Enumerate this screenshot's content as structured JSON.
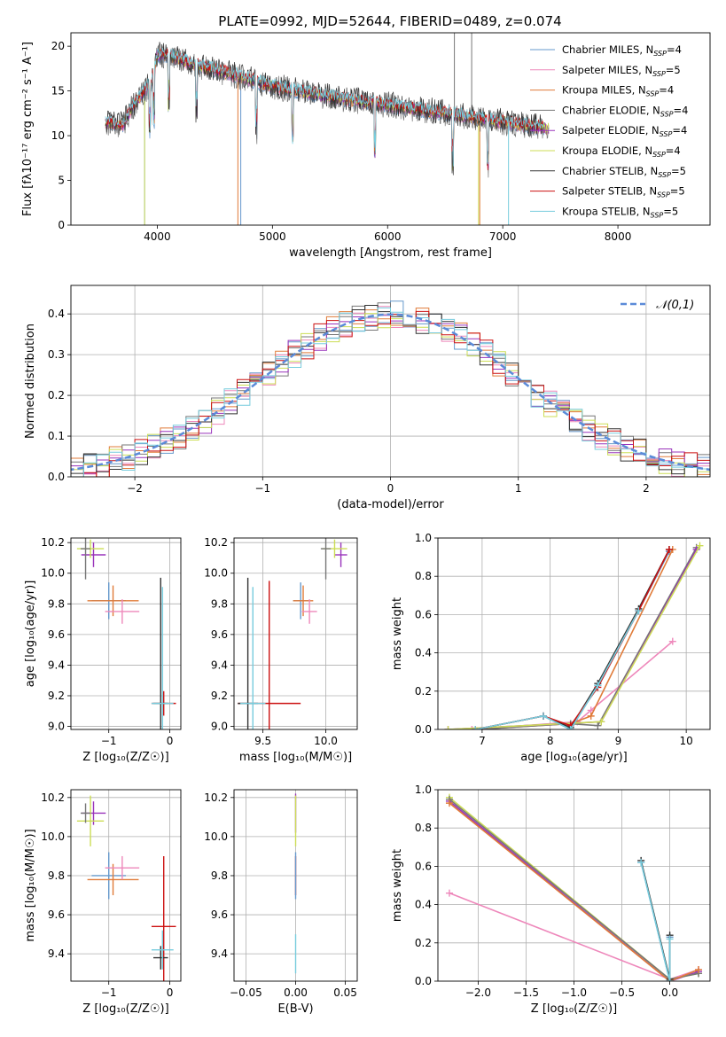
{
  "colors": [
    "#6699cc",
    "#ee88bb",
    "#e07b39",
    "#777777",
    "#9933bb",
    "#ccdd55",
    "#333333",
    "#cc1111",
    "#77ccdd"
  ],
  "title": "PLATE=0992, MJD=52644, FIBERID=0489, z=0.074",
  "chart_data": [
    {
      "id": "spectrum",
      "type": "line",
      "xlabel": "wavelength [Angstrom, rest frame]",
      "ylabel": "Flux [fλ10⁻¹⁷ erg cm⁻² s⁻¹ A⁻¹]",
      "xlim": [
        3250,
        8800
      ],
      "ylim": [
        0,
        21.5
      ],
      "xticks": [
        4000,
        5000,
        6000,
        7000,
        8000
      ],
      "yticks": [
        0,
        5,
        10,
        15,
        20
      ],
      "grid": false,
      "legend_position": "top-right",
      "series": [
        {
          "name": "Chabrier MILES, N_SSP=4",
          "color_index": 0
        },
        {
          "name": "Salpeter MILES, N_SSP=5",
          "color_index": 1
        },
        {
          "name": "Kroupa MILES, N_SSP=4",
          "color_index": 2
        },
        {
          "name": "Chabrier ELODIE, N_SSP=4",
          "color_index": 3
        },
        {
          "name": "Salpeter ELODIE, N_SSP=4",
          "color_index": 4
        },
        {
          "name": "Kroupa ELODIE, N_SSP=4",
          "color_index": 5
        },
        {
          "name": "Chabrier STELIB, N_SSP=5",
          "color_index": 6
        },
        {
          "name": "Salpeter STELIB, N_SSP=5",
          "color_index": 7
        },
        {
          "name": "Kroupa STELIB, N_SSP=5",
          "color_index": 8
        }
      ],
      "continuum": {
        "x": [
          3550,
          3700,
          3800,
          3950,
          4000,
          4100,
          4300,
          4600,
          5000,
          5500,
          6000,
          6500,
          7000,
          7400
        ],
        "y": [
          11.5,
          11.2,
          13.5,
          16.0,
          19.0,
          19.0,
          18.0,
          17.0,
          15.5,
          14.3,
          13.4,
          12.5,
          11.5,
          10.8
        ]
      }
    },
    {
      "id": "residual_hist",
      "type": "line",
      "xlabel": "(data-model)/error",
      "ylabel": "Normed distribution",
      "xlim": [
        -2.5,
        2.5
      ],
      "ylim": [
        0,
        0.47
      ],
      "xticks": [
        -2,
        -1,
        0,
        1,
        2
      ],
      "yticks": [
        0.0,
        0.1,
        0.2,
        0.3,
        0.4
      ],
      "grid": true,
      "legend_position": "top-right",
      "legend": "𝒩(0,1)",
      "gaussian": {
        "mean": 0,
        "sigma": 1
      },
      "bin_width": 0.1,
      "bin_start": -2.6
    },
    {
      "id": "age_vs_Z",
      "type": "scatter",
      "xlabel": "Z [log₁₀(Z/Z☉)]",
      "ylabel": "age  [log₁₀(age/yr)]",
      "xlim": [
        -1.62,
        0.18
      ],
      "ylim": [
        8.98,
        10.23
      ],
      "xticks": [
        -1,
        0
      ],
      "yticks": [
        9.0,
        9.2,
        9.4,
        9.6,
        9.8,
        10.0,
        10.2
      ],
      "grid": true,
      "errorbars": [
        {
          "c": 0,
          "x": -1.0,
          "y": 9.82,
          "xe": 0.28,
          "ye": 0.12
        },
        {
          "c": 2,
          "x": -0.93,
          "y": 9.82,
          "xe": 0.42,
          "ye": 0.1
        },
        {
          "c": 1,
          "x": -0.78,
          "y": 9.75,
          "xe": 0.28,
          "ye": 0.08
        },
        {
          "c": 4,
          "x": -1.25,
          "y": 10.12,
          "xe": 0.2,
          "ye": 0.08
        },
        {
          "c": 5,
          "x": -1.3,
          "y": 10.16,
          "xe": 0.22,
          "ye": 0.06
        },
        {
          "c": 3,
          "x": -1.38,
          "y": 10.16,
          "xe": 0.08,
          "ye": 0.2
        },
        {
          "c": 7,
          "x": -0.1,
          "y": 9.15,
          "xe": 0.2,
          "ye": 0.08
        },
        {
          "c": 6,
          "x": -0.15,
          "y": 9.15,
          "xe": 0.12,
          "ye": 0.82
        },
        {
          "c": 8,
          "x": -0.12,
          "y": 9.15,
          "xe": 0.18,
          "ye": 0.76
        }
      ]
    },
    {
      "id": "age_vs_mass",
      "type": "scatter",
      "xlabel": "mass [log₁₀(M/M☉)]",
      "ylabel": "",
      "xlim": [
        9.27,
        10.25
      ],
      "ylim": [
        8.98,
        10.23
      ],
      "xticks": [
        9.5,
        10.0
      ],
      "yticks": [
        9.0,
        9.2,
        9.4,
        9.6,
        9.8,
        10.0,
        10.2
      ],
      "grid": true,
      "errorbars": [
        {
          "c": 0,
          "x": 9.8,
          "y": 9.82,
          "xe": 0.06,
          "ye": 0.12
        },
        {
          "c": 2,
          "x": 9.82,
          "y": 9.82,
          "xe": 0.08,
          "ye": 0.1
        },
        {
          "c": 1,
          "x": 9.87,
          "y": 9.75,
          "xe": 0.06,
          "ye": 0.08
        },
        {
          "c": 4,
          "x": 10.12,
          "y": 10.12,
          "xe": 0.05,
          "ye": 0.08
        },
        {
          "c": 5,
          "x": 10.07,
          "y": 10.16,
          "xe": 0.1,
          "ye": 0.06
        },
        {
          "c": 3,
          "x": 10.0,
          "y": 10.16,
          "xe": 0.04,
          "ye": 0.2
        },
        {
          "c": 7,
          "x": 9.55,
          "y": 9.15,
          "xe": 0.25,
          "ye": 0.8
        },
        {
          "c": 6,
          "x": 9.38,
          "y": 9.15,
          "xe": 0.08,
          "ye": 0.82
        },
        {
          "c": 8,
          "x": 9.42,
          "y": 9.15,
          "xe": 0.1,
          "ye": 0.76
        }
      ]
    },
    {
      "id": "massweight_vs_age",
      "type": "line",
      "xlabel": "age  [log₁₀(age/yr)]",
      "ylabel": "mass weight",
      "xlim": [
        6.35,
        10.35
      ],
      "ylim": [
        0,
        1.0
      ],
      "xticks": [
        7,
        8,
        9,
        10
      ],
      "yticks": [
        0.0,
        0.2,
        0.4,
        0.6,
        0.8,
        1.0
      ],
      "grid": true,
      "series": [
        {
          "c": 0,
          "x": [
            6.9,
            7.9,
            8.3,
            8.7,
            9.3,
            9.75
          ],
          "y": [
            0.0,
            0.07,
            0.0,
            0.23,
            0.62,
            0.93
          ]
        },
        {
          "c": 1,
          "x": [
            6.85,
            8.4,
            8.6,
            9.8
          ],
          "y": [
            0.0,
            0.04,
            0.1,
            0.46
          ]
        },
        {
          "c": 2,
          "x": [
            6.9,
            8.3,
            8.6,
            9.8
          ],
          "y": [
            0.0,
            0.03,
            0.07,
            0.94
          ]
        },
        {
          "c": 3,
          "x": [
            6.9,
            8.3,
            8.7,
            10.15
          ],
          "y": [
            0.0,
            0.03,
            0.02,
            0.95
          ]
        },
        {
          "c": 4,
          "x": [
            6.5,
            8.75,
            10.15
          ],
          "y": [
            0.0,
            0.04,
            0.94
          ]
        },
        {
          "c": 5,
          "x": [
            6.5,
            8.75,
            10.2
          ],
          "y": [
            0.0,
            0.04,
            0.96
          ]
        },
        {
          "c": 6,
          "x": [
            6.9,
            7.9,
            8.3,
            8.7,
            9.3,
            9.75
          ],
          "y": [
            0.0,
            0.07,
            0.01,
            0.24,
            0.63,
            0.94
          ]
        },
        {
          "c": 7,
          "x": [
            6.9,
            7.9,
            8.3,
            8.7,
            9.3,
            9.75
          ],
          "y": [
            0.0,
            0.07,
            0.02,
            0.22,
            0.62,
            0.94
          ]
        },
        {
          "c": 8,
          "x": [
            6.9,
            7.9,
            8.3,
            8.7,
            9.3
          ],
          "y": [
            0.0,
            0.07,
            0.0,
            0.23,
            0.62
          ]
        }
      ]
    },
    {
      "id": "mass_vs_Z",
      "type": "scatter",
      "xlabel": "Z [log₁₀(Z/Z☉)]",
      "ylabel": "mass [log₁₀(M/M☉)]",
      "xlim": [
        -1.62,
        0.18
      ],
      "ylim": [
        9.26,
        10.24
      ],
      "xticks": [
        -1,
        0
      ],
      "yticks": [
        9.4,
        9.6,
        9.8,
        10.0,
        10.2
      ],
      "grid": true,
      "errorbars": [
        {
          "c": 0,
          "x": -1.0,
          "y": 9.8,
          "xe": 0.28,
          "ye": 0.12
        },
        {
          "c": 2,
          "x": -0.93,
          "y": 9.78,
          "xe": 0.42,
          "ye": 0.08
        },
        {
          "c": 1,
          "x": -0.78,
          "y": 9.84,
          "xe": 0.28,
          "ye": 0.06
        },
        {
          "c": 4,
          "x": -1.25,
          "y": 10.12,
          "xe": 0.2,
          "ye": 0.06
        },
        {
          "c": 5,
          "x": -1.3,
          "y": 10.08,
          "xe": 0.22,
          "ye": 0.13
        },
        {
          "c": 3,
          "x": -1.38,
          "y": 10.12,
          "xe": 0.08,
          "ye": 0.05
        },
        {
          "c": 7,
          "x": -0.1,
          "y": 9.54,
          "xe": 0.2,
          "ye": 0.36
        },
        {
          "c": 6,
          "x": -0.15,
          "y": 9.38,
          "xe": 0.12,
          "ye": 0.06
        },
        {
          "c": 8,
          "x": -0.12,
          "y": 9.42,
          "xe": 0.18,
          "ye": 0.1
        }
      ]
    },
    {
      "id": "mass_vs_ebv",
      "type": "scatter",
      "xlabel": "E(B-V)",
      "ylabel": "",
      "xlim": [
        -0.062,
        0.062
      ],
      "ylim": [
        9.26,
        10.24
      ],
      "xticks": [
        -0.05,
        0.0,
        0.05
      ],
      "yticks": [
        9.4,
        9.6,
        9.8,
        10.0,
        10.2
      ],
      "grid": true,
      "errorbars": [
        {
          "c": 4,
          "x": 0.0,
          "y": 10.12,
          "xe": 0.0,
          "ye": 0.1
        },
        {
          "c": 5,
          "x": 0.0,
          "y": 10.08,
          "xe": 0.0,
          "ye": 0.13
        },
        {
          "c": 7,
          "x": 0.0,
          "y": 9.8,
          "xe": 0.0,
          "ye": 0.1
        },
        {
          "c": 0,
          "x": 0.0,
          "y": 9.8,
          "xe": 0.0,
          "ye": 0.12
        },
        {
          "c": 8,
          "x": 0.0,
          "y": 9.4,
          "xe": 0.0,
          "ye": 0.1
        }
      ]
    },
    {
      "id": "massweight_vs_Z",
      "type": "line",
      "xlabel": "Z [log₁₀(Z/Z☉)]",
      "ylabel": "mass weight",
      "xlim": [
        -2.42,
        0.42
      ],
      "ylim": [
        0,
        1.0
      ],
      "xticks": [
        -2.0,
        -1.5,
        -1.0,
        -0.5,
        0.0
      ],
      "yticks": [
        0.0,
        0.2,
        0.4,
        0.6,
        0.8,
        1.0
      ],
      "grid": true,
      "series": [
        {
          "c": 1,
          "x": [
            -2.3,
            0.0,
            0.3
          ],
          "y": [
            0.46,
            0.01,
            0.06
          ]
        },
        {
          "c": 4,
          "x": [
            -2.3,
            0.0,
            0.3
          ],
          "y": [
            0.94,
            0.0,
            0.05
          ]
        },
        {
          "c": 5,
          "x": [
            -2.3,
            0.0,
            0.3
          ],
          "y": [
            0.96,
            0.01,
            0.04
          ]
        },
        {
          "c": 3,
          "x": [
            -2.3,
            0.0,
            0.3
          ],
          "y": [
            0.95,
            0.01,
            0.04
          ]
        },
        {
          "c": 2,
          "x": [
            -2.3,
            0.0,
            0.3
          ],
          "y": [
            0.93,
            0.0,
            0.06
          ]
        },
        {
          "c": 0,
          "x": [
            -0.3,
            0.0,
            0.0
          ],
          "y": [
            0.62,
            0.0,
            0.23
          ]
        },
        {
          "c": 6,
          "x": [
            -0.3,
            0.0,
            0.0
          ],
          "y": [
            0.63,
            0.01,
            0.24
          ]
        },
        {
          "c": 8,
          "x": [
            -0.3,
            0.0,
            0.0
          ],
          "y": [
            0.62,
            0.0,
            0.22
          ]
        }
      ]
    }
  ]
}
